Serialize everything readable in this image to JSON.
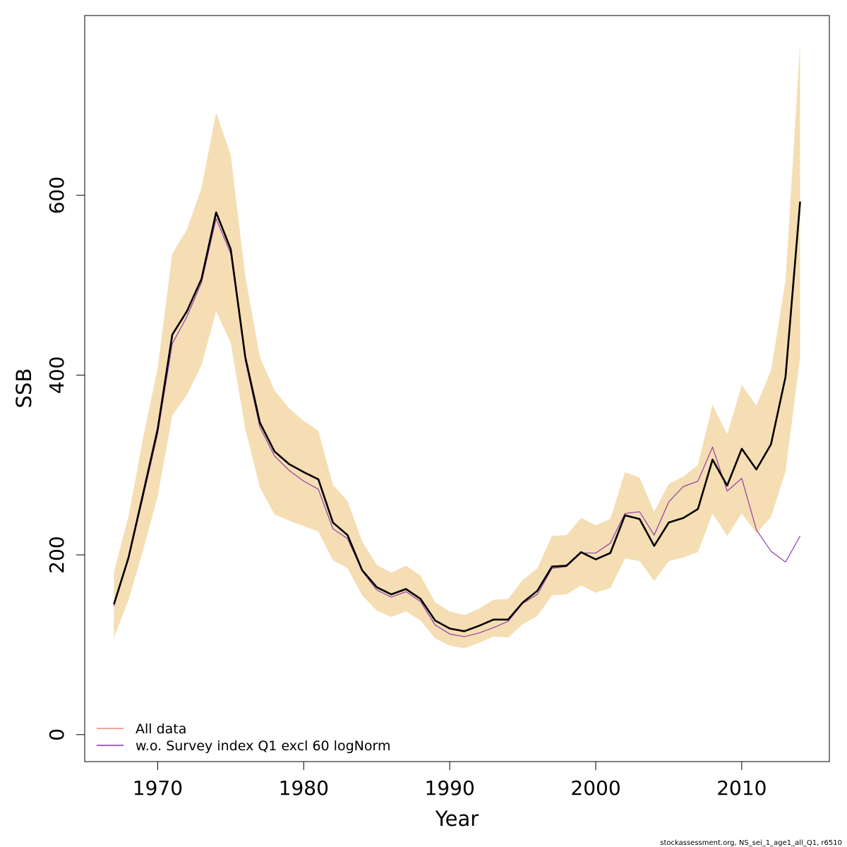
{
  "chart_data": {
    "type": "line",
    "xlabel": "Year",
    "ylabel": "SSB",
    "xlim": [
      1965.0,
      2016.0
    ],
    "ylim": [
      -30,
      800
    ],
    "x_ticks": [
      1970,
      1980,
      1990,
      2000,
      2010
    ],
    "y_ticks": [
      0,
      200,
      400,
      600
    ],
    "x": [
      1967,
      1968,
      1969,
      1970,
      1971,
      1972,
      1973,
      1974,
      1975,
      1976,
      1977,
      1978,
      1979,
      1980,
      1981,
      1982,
      1983,
      1984,
      1985,
      1986,
      1987,
      1988,
      1989,
      1990,
      1991,
      1992,
      1993,
      1994,
      1995,
      1996,
      1997,
      1998,
      1999,
      2000,
      2001,
      2002,
      2003,
      2004,
      2005,
      2006,
      2007,
      2008,
      2009,
      2010,
      2011,
      2012,
      2013,
      2014
    ],
    "band": {
      "color": "#f5deb3",
      "lower": [
        108,
        150,
        205,
        265,
        355,
        378,
        411,
        471,
        436,
        340,
        275,
        245,
        238,
        232,
        226,
        194,
        185,
        155,
        138,
        131,
        137,
        127,
        107,
        99,
        96,
        102,
        109,
        108,
        123,
        132,
        155,
        156,
        166,
        158,
        163,
        196,
        193,
        171,
        193,
        197,
        203,
        246,
        221,
        246,
        224,
        242,
        293,
        420
      ],
      "upper": [
        181,
        243,
        330,
        408,
        535,
        562,
        608,
        692,
        645,
        510,
        420,
        383,
        363,
        349,
        338,
        278,
        260,
        215,
        189,
        180,
        188,
        177,
        147,
        137,
        133,
        140,
        150,
        151,
        172,
        185,
        221,
        222,
        241,
        233,
        240,
        292,
        286,
        248,
        279,
        287,
        300,
        367,
        334,
        389,
        366,
        405,
        505,
        770
      ]
    },
    "series": [
      {
        "name": "All data",
        "color": "#000000",
        "width": 2.6,
        "values": [
          145,
          197,
          268,
          340,
          445,
          471,
          507,
          581,
          540,
          420,
          347,
          315,
          301,
          292,
          284,
          236,
          222,
          183,
          164,
          156,
          162,
          151,
          127,
          118,
          115,
          121,
          128,
          128,
          147,
          160,
          187,
          188,
          203,
          195,
          202,
          244,
          240,
          210,
          236,
          241,
          251,
          306,
          277,
          318,
          295,
          323,
          398,
          593
        ]
      },
      {
        "name": "w.o. Survey index Q1 excl 60 logNorm",
        "color": "#8b2fa8",
        "width": 1.1,
        "values": [
          143,
          195,
          264,
          335,
          435,
          465,
          503,
          574,
          535,
          416,
          342,
          310,
          294,
          282,
          273,
          229,
          218,
          182,
          161,
          153,
          159,
          148,
          122,
          112,
          109,
          113,
          119,
          126,
          146,
          156,
          185,
          187,
          202,
          202,
          213,
          246,
          248,
          222,
          259,
          276,
          282,
          320,
          271,
          285,
          228,
          204,
          192,
          221
        ]
      }
    ],
    "legend": {
      "position": "bottom-left",
      "entries": [
        {
          "label": "All data",
          "color": "#f08878"
        },
        {
          "label": "w.o. Survey index Q1 excl 60 logNorm",
          "color": "#8b2fa8"
        }
      ]
    },
    "footer": "stockassessment.org, NS_sei_1_age1_all_Q1, r6510"
  }
}
